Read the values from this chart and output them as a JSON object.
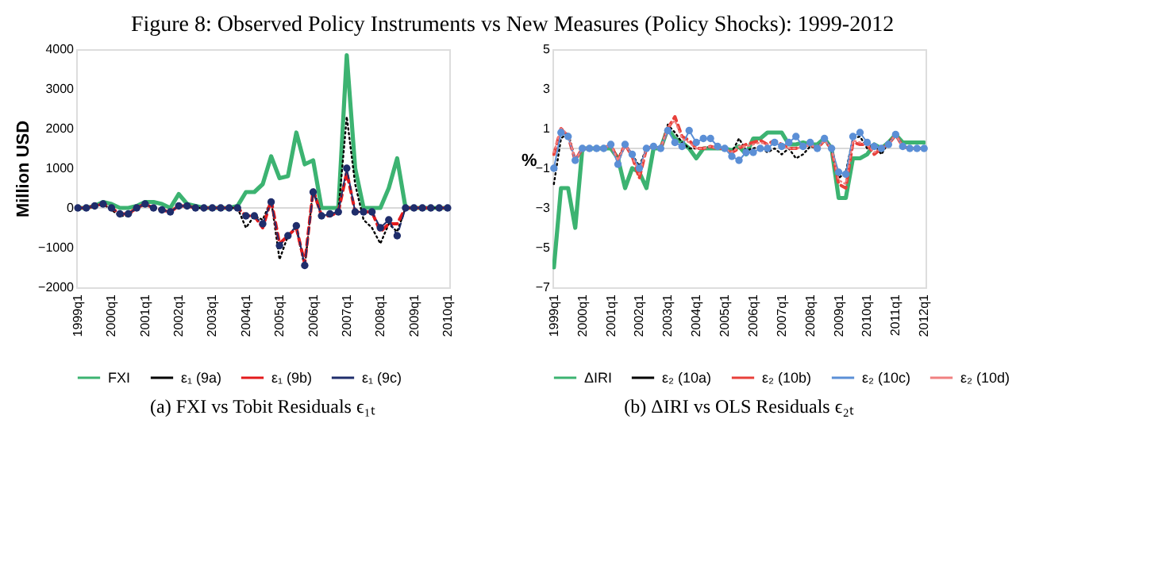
{
  "chart_data": [
    {
      "type": "line",
      "title": "Figure 8: Observed Policy Instruments vs New Measures (Policy Shocks): 1999-2012",
      "ylabel": "Million  USD",
      "annotations": [
        "(a) FXI vs Tobit Residuals ϵ₁ₜ"
      ],
      "categories": [
        "1999q1",
        null,
        null,
        null,
        "2000q1",
        null,
        null,
        null,
        "2001q1",
        null,
        null,
        null,
        "2002q1",
        null,
        null,
        null,
        "2003q1",
        null,
        null,
        null,
        "2004q1",
        null,
        null,
        null,
        "2005q1",
        null,
        null,
        null,
        "2006q1",
        null,
        null,
        null,
        "2007q1",
        null,
        null,
        null,
        "2008q1",
        null,
        null,
        null,
        "2009q1",
        null,
        null,
        null,
        "2010q1"
      ],
      "series": [
        {
          "name": "FXI",
          "color": "#3cb371",
          "line_style": "solid",
          "marker": "none",
          "values": [
            0,
            0,
            50,
            150,
            100,
            0,
            0,
            50,
            150,
            150,
            100,
            0,
            350,
            100,
            50,
            0,
            0,
            0,
            0,
            50,
            400,
            400,
            600,
            1300,
            750,
            800,
            1900,
            1100,
            1200,
            0,
            0,
            0,
            3850,
            1000,
            0,
            0,
            0,
            500,
            1250,
            0,
            0,
            0,
            0,
            0,
            0
          ]
        },
        {
          "name": "ε₁ (9a)",
          "color": "#000000",
          "line_style": "dotted",
          "marker": "none",
          "values": [
            0,
            0,
            50,
            100,
            -50,
            -200,
            -200,
            0,
            100,
            0,
            -50,
            -100,
            50,
            50,
            0,
            0,
            0,
            0,
            0,
            0,
            -500,
            -200,
            -300,
            200,
            -1300,
            -700,
            -500,
            -1500,
            500,
            -200,
            -200,
            -100,
            2300,
            600,
            -300,
            -500,
            -900,
            -400,
            -600,
            0,
            0,
            0,
            0,
            0,
            0
          ]
        },
        {
          "name": "ε₁ (9b)",
          "color": "#e31a1c",
          "line_style": "dashed",
          "marker": "none",
          "values": [
            0,
            0,
            50,
            100,
            0,
            -150,
            -150,
            0,
            100,
            0,
            -50,
            -100,
            50,
            50,
            0,
            0,
            0,
            0,
            0,
            0,
            -200,
            -200,
            -500,
            200,
            -900,
            -700,
            -500,
            -1400,
            450,
            -200,
            -200,
            -100,
            900,
            -100,
            -100,
            -100,
            -600,
            -400,
            -400,
            0,
            0,
            0,
            0,
            0,
            0
          ]
        },
        {
          "name": "ε₁ (9c)",
          "color": "#1f2d6b",
          "line_style": "dashed",
          "marker": "circle",
          "values": [
            0,
            0,
            50,
            100,
            0,
            -150,
            -150,
            0,
            100,
            0,
            -50,
            -100,
            50,
            50,
            0,
            0,
            0,
            0,
            0,
            0,
            -200,
            -200,
            -400,
            150,
            -950,
            -700,
            -450,
            -1450,
            400,
            -200,
            -150,
            -100,
            1000,
            -100,
            -100,
            -100,
            -500,
            -300,
            -700,
            0,
            0,
            0,
            0,
            0,
            0
          ]
        }
      ],
      "ylim": [
        -2000,
        4000
      ],
      "yticks": [
        -2000,
        -1000,
        0,
        1000,
        2000,
        3000,
        4000
      ],
      "grid": false,
      "legend": "bottom",
      "ref_lines": [
        {
          "axis": "y",
          "value": 0,
          "color": "#d9d9d9"
        }
      ]
    },
    {
      "type": "line",
      "ylabel": "%",
      "annotations": [
        "(b) ΔIRI vs OLS Residuals ϵ₂ₜ"
      ],
      "categories": [
        "1999q1",
        null,
        null,
        null,
        "2000q1",
        null,
        null,
        null,
        "2001q1",
        null,
        null,
        null,
        "2002q1",
        null,
        null,
        null,
        "2003q1",
        null,
        null,
        null,
        "2004q1",
        null,
        null,
        null,
        "2005q1",
        null,
        null,
        null,
        "2006q1",
        null,
        null,
        null,
        "2007q1",
        null,
        null,
        null,
        "2008q1",
        null,
        null,
        null,
        "2009q1",
        null,
        null,
        null,
        "2010q1",
        null,
        null,
        null,
        "2011q1",
        null,
        null,
        null,
        "2012q1"
      ],
      "series": [
        {
          "name": "ΔIRI",
          "color": "#3cb371",
          "line_style": "solid",
          "marker": "none",
          "values": [
            -6,
            -2,
            -2,
            -4,
            0,
            0,
            0,
            0,
            0,
            -0.5,
            -2,
            -1,
            -1.2,
            -2,
            0,
            0,
            1,
            0.5,
            0.3,
            0,
            -0.5,
            0,
            0,
            0,
            0,
            -0.1,
            0.1,
            -0.3,
            0.5,
            0.5,
            0.8,
            0.8,
            0.8,
            0.2,
            0.2,
            0.3,
            0.2,
            0.2,
            0.5,
            0,
            -2.5,
            -2.5,
            -0.5,
            -0.5,
            -0.3,
            0.2,
            0,
            0.3,
            0.7,
            0.3,
            0.3,
            0.3,
            0.3
          ]
        },
        {
          "name": "ε₂ (10a)",
          "color": "#000000",
          "line_style": "dotted",
          "marker": "none",
          "values": [
            -1.8,
            0.5,
            0.8,
            -0.6,
            0,
            0,
            0,
            0,
            0.2,
            -0.5,
            0.2,
            -0.3,
            -0.9,
            0,
            0.1,
            0,
            1.2,
            0.8,
            0.3,
            0,
            0,
            0,
            0.1,
            0,
            0,
            -0.2,
            0.5,
            -0.1,
            0,
            0.1,
            -0.2,
            0,
            -0.3,
            0,
            -0.5,
            -0.3,
            0.1,
            0,
            0.5,
            0,
            -1.5,
            -1.2,
            0.5,
            0.6,
            0,
            0.2,
            -0.3,
            0.3,
            0.7,
            0.1,
            0,
            0,
            0
          ]
        },
        {
          "name": "ε₂ (10b)",
          "color": "#e8403a",
          "line_style": "dashed",
          "marker": "none",
          "values": [
            -0.3,
            1,
            0.6,
            -0.6,
            0,
            0,
            0,
            0,
            0.2,
            -0.6,
            0.2,
            -0.4,
            -1.5,
            0,
            0.1,
            0,
            1,
            1.6,
            0.6,
            0.4,
            0,
            0,
            0.1,
            0,
            0,
            -0.2,
            0,
            0.2,
            0.3,
            0.4,
            0.2,
            0.4,
            0.2,
            0,
            0,
            0.1,
            0.2,
            0,
            0.4,
            0,
            -1.8,
            -2,
            0.3,
            0.2,
            0.2,
            -0.3,
            0,
            0.2,
            0.7,
            0.1,
            0,
            0,
            0
          ]
        },
        {
          "name": "ε₂ (10c)",
          "color": "#5b8fd6",
          "line_style": "solid",
          "marker": "circle",
          "values": [
            -1,
            0.8,
            0.6,
            -0.6,
            0,
            0,
            0,
            0,
            0.2,
            -0.8,
            0.2,
            -0.3,
            -1,
            0,
            0.1,
            0,
            0.9,
            0.3,
            0.1,
            0.9,
            0.3,
            0.5,
            0.5,
            0.1,
            0,
            -0.4,
            -0.6,
            -0.2,
            -0.2,
            0,
            0,
            0.3,
            0.1,
            0.3,
            0.6,
            0.1,
            0.3,
            0,
            0.5,
            0,
            -1.2,
            -1.3,
            0.6,
            0.8,
            0.3,
            0.1,
            0,
            0.2,
            0.7,
            0.1,
            0,
            0,
            0
          ]
        },
        {
          "name": "ε₂ (10d)",
          "color": "#f08080",
          "line_style": "dotted",
          "marker": "none",
          "values": [
            -0.2,
            1,
            0.7,
            -0.6,
            0,
            0,
            0,
            0,
            0.2,
            -0.6,
            0.2,
            -0.4,
            -1.3,
            0,
            0.1,
            0,
            1.1,
            1.4,
            0.5,
            0.3,
            0,
            0,
            0.1,
            0,
            0,
            -0.2,
            0.1,
            0.1,
            0.2,
            0.3,
            0.2,
            0.3,
            0.1,
            0,
            0,
            0.1,
            0.2,
            0,
            0.4,
            0,
            -1.6,
            -1.8,
            0.4,
            0.3,
            0.2,
            -0.2,
            0,
            0.2,
            0.7,
            0.1,
            0,
            0,
            0
          ]
        }
      ],
      "ylim": [
        -7,
        5
      ],
      "yticks": [
        -7,
        -5,
        -3,
        -1,
        1,
        3,
        5
      ],
      "grid": false,
      "legend": "bottom",
      "ref_lines": [
        {
          "axis": "y",
          "value": 0,
          "color": "#d9d9d9"
        }
      ]
    }
  ]
}
